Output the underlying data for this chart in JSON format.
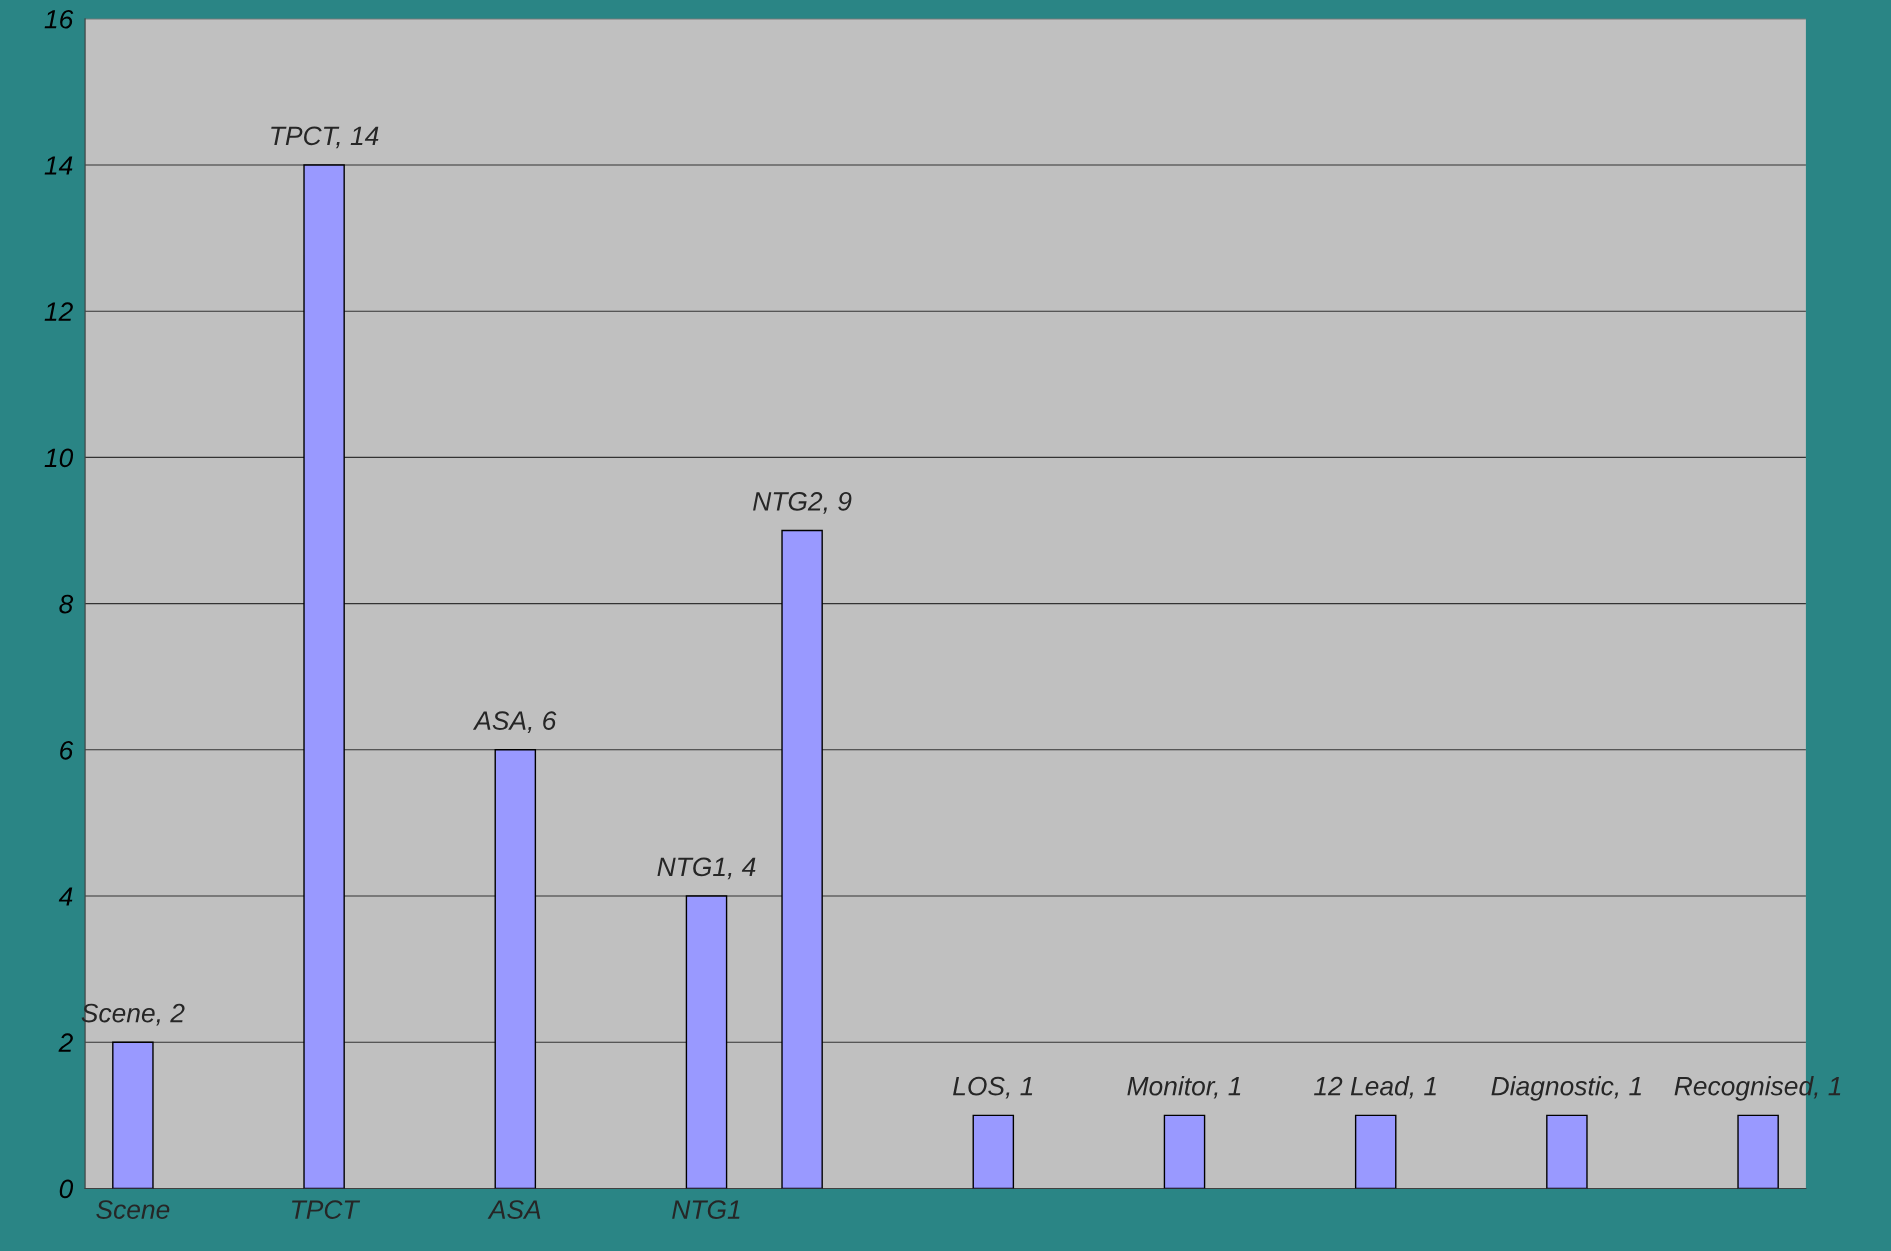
{
  "chart_data": {
    "type": "bar",
    "categories": [
      "Scene",
      null,
      "TPCT",
      null,
      "ASA",
      null,
      "NTG1",
      null,
      null,
      null,
      null,
      null,
      null,
      null,
      null,
      null,
      null,
      null
    ],
    "values": [
      2,
      null,
      14,
      null,
      6,
      null,
      4,
      9,
      null,
      1,
      null,
      1,
      null,
      1,
      null,
      1,
      null,
      1
    ],
    "value_labels": [
      "Scene, 2",
      null,
      "TPCT, 14",
      null,
      "ASA, 6",
      null,
      "NTG1, 4",
      "NTG2, 9",
      null,
      "LOS, 1",
      null,
      "Monitor, 1",
      null,
      "12 Lead, 1",
      null,
      "Diagnostic, 1",
      null,
      "Recognised, 1"
    ],
    "color": "#9999ff",
    "ylim": [
      0,
      16
    ],
    "yticks": [
      0,
      2,
      4,
      6,
      8,
      10,
      12,
      14,
      16
    ],
    "grid": "y"
  }
}
